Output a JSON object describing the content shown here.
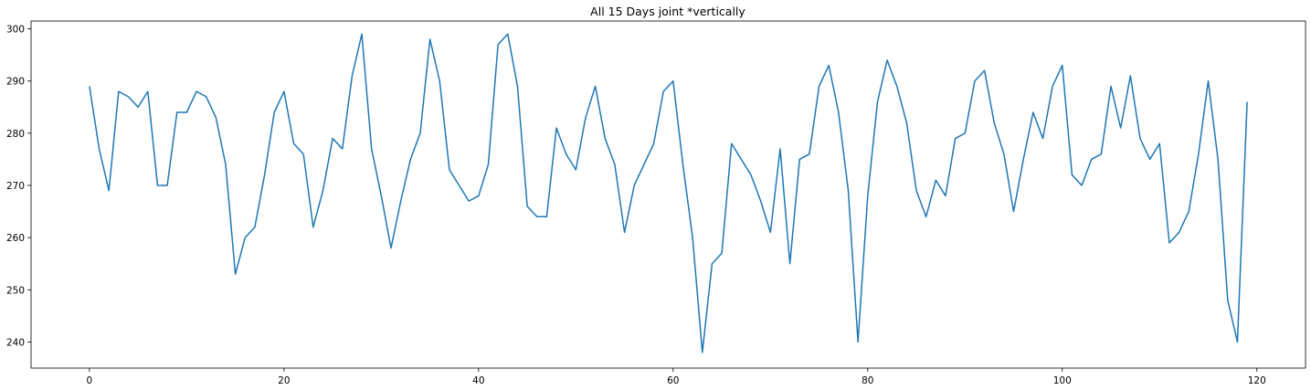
{
  "chart_data": {
    "type": "line",
    "title": "All 15 Days joint *vertically",
    "xlabel": "",
    "ylabel": "",
    "xlim": [
      -6,
      125
    ],
    "ylim": [
      235,
      301.5
    ],
    "xticks": [
      0,
      20,
      40,
      60,
      80,
      100,
      120
    ],
    "yticks": [
      240,
      250,
      260,
      270,
      280,
      290,
      300
    ],
    "grid": false,
    "line_color": "#1f77b4",
    "series": [
      {
        "x": [
          0,
          1,
          2,
          3,
          4,
          5,
          6,
          7,
          8,
          9,
          10,
          11,
          12,
          13,
          14,
          15,
          16,
          17,
          18,
          19,
          20,
          21,
          22,
          23,
          24,
          25,
          26,
          27,
          28,
          29,
          30,
          31,
          32,
          33,
          34,
          35,
          36,
          37,
          38,
          39,
          40,
          41,
          42,
          43,
          44,
          45,
          46,
          47,
          48,
          49,
          50,
          51,
          52,
          53,
          54,
          55,
          56,
          57,
          58,
          59,
          60,
          61,
          62,
          63,
          64,
          65,
          66,
          67,
          68,
          69,
          70,
          71,
          72,
          73,
          74,
          75,
          76,
          77,
          78,
          79,
          80,
          81,
          82,
          83,
          84,
          85,
          86,
          87,
          88,
          89,
          90,
          91,
          92,
          93,
          94,
          95,
          96,
          97,
          98,
          99,
          100,
          101,
          102,
          103,
          104,
          105,
          106,
          107,
          108,
          109,
          110,
          111,
          112,
          113,
          114,
          115,
          116,
          117,
          118,
          119
        ],
        "values": [
          289,
          277,
          269,
          288,
          287,
          285,
          288,
          270,
          270,
          284,
          284,
          288,
          287,
          283,
          274,
          253,
          260,
          262,
          272,
          284,
          288,
          278,
          276,
          262,
          269,
          279,
          277,
          291,
          299,
          277,
          268,
          258,
          267,
          275,
          280,
          298,
          290,
          273,
          270,
          267,
          268,
          274,
          297,
          299,
          289,
          266,
          264,
          264,
          281,
          276,
          273,
          283,
          289,
          279,
          274,
          261,
          270,
          274,
          278,
          288,
          290,
          274,
          260,
          238,
          255,
          257,
          278,
          275,
          272,
          267,
          261,
          277,
          255,
          275,
          276,
          289,
          293,
          284,
          269,
          240,
          268,
          286,
          294,
          289,
          282,
          269,
          264,
          271,
          268,
          279,
          280,
          290,
          292,
          282,
          276,
          265,
          275,
          284,
          279,
          289,
          293,
          272,
          270,
          275,
          276,
          289,
          281,
          291,
          279,
          275,
          278,
          259,
          261,
          265,
          276,
          290,
          275,
          248,
          240,
          286
        ]
      }
    ]
  }
}
